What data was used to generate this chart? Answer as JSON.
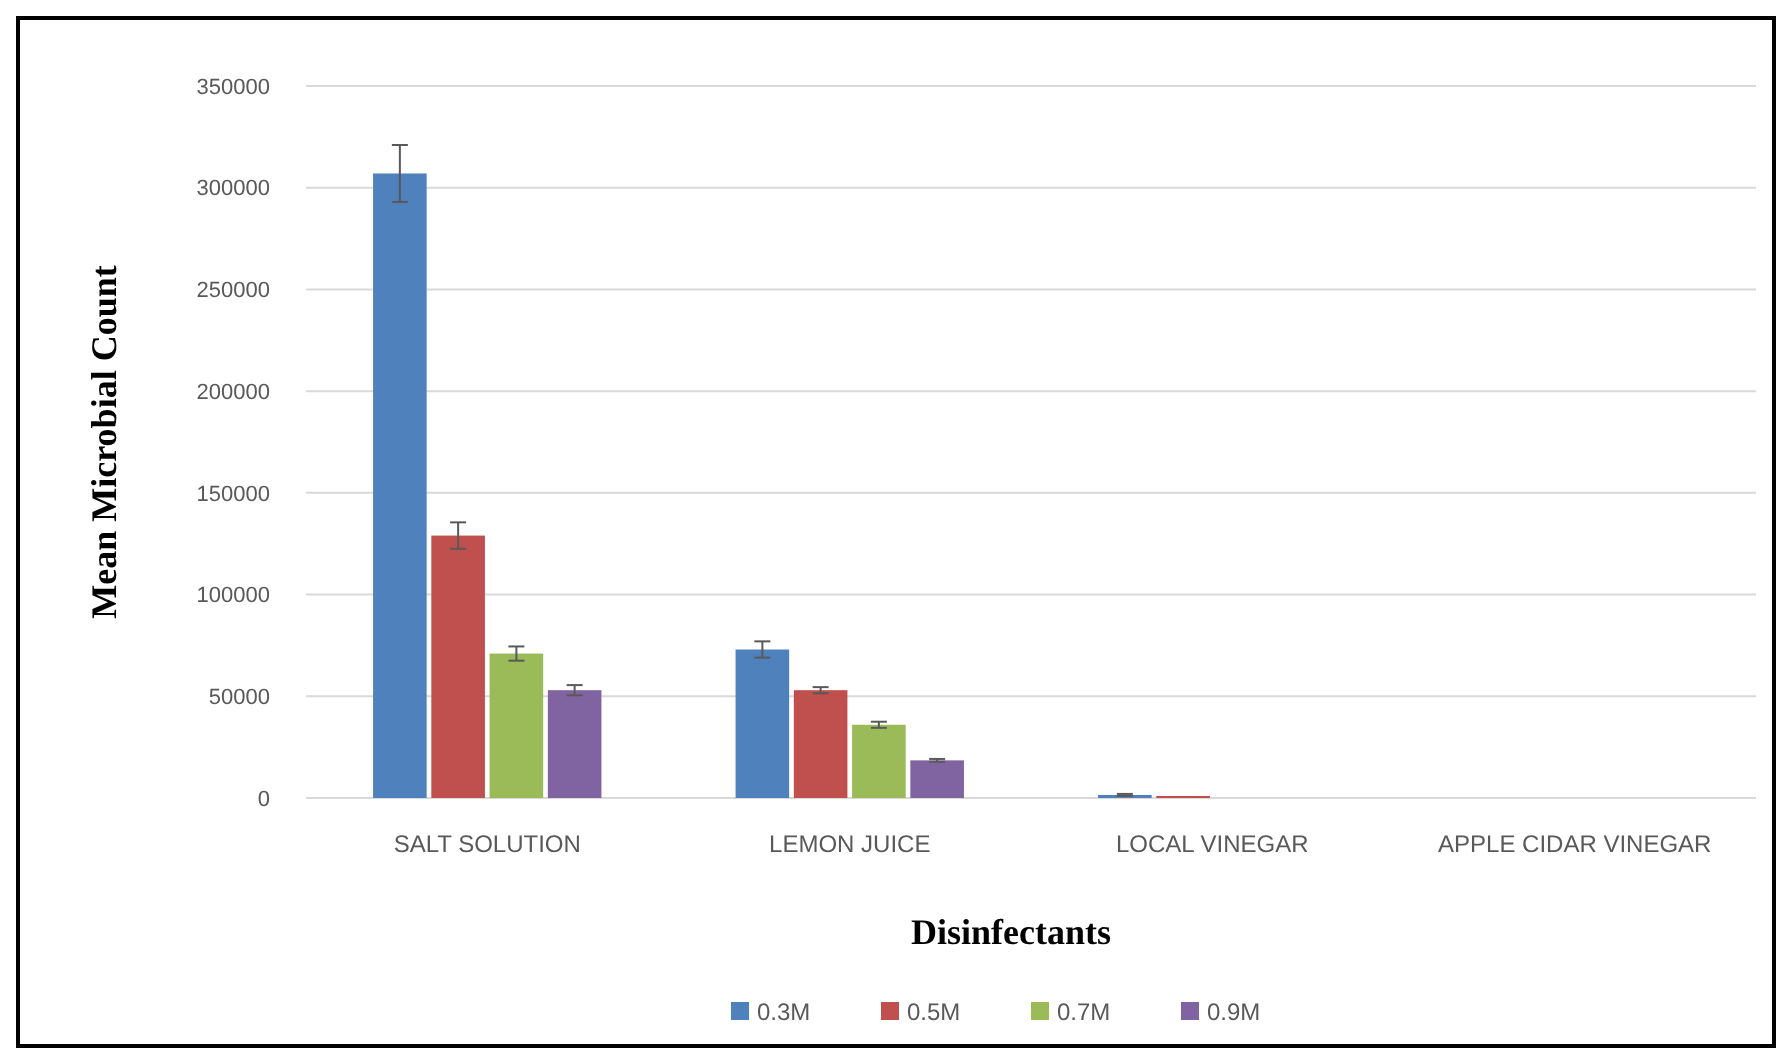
{
  "chart_data": {
    "type": "bar",
    "xlabel": "Disinfectants",
    "ylabel": "Mean Microbial Count",
    "categories": [
      "SALT SOLUTION",
      "LEMON JUICE",
      "LOCAL VINEGAR",
      "APPLE CIDAR VINEGAR"
    ],
    "series": [
      {
        "name": "0.3M",
        "color": "#4f81bd",
        "values": [
          307000,
          73000,
          1500,
          0
        ],
        "errors": [
          14000,
          4000,
          500,
          null
        ]
      },
      {
        "name": "0.5M",
        "color": "#c0504d",
        "values": [
          129000,
          53000,
          1000,
          0
        ],
        "errors": [
          6500,
          1500,
          null,
          null
        ]
      },
      {
        "name": "0.7M",
        "color": "#9bbb59",
        "values": [
          71000,
          36000,
          0,
          0
        ],
        "errors": [
          3500,
          1500,
          null,
          null
        ]
      },
      {
        "name": "0.9M",
        "color": "#8064a2",
        "values": [
          53000,
          18500,
          0,
          0
        ],
        "errors": [
          2500,
          700,
          null,
          null
        ]
      }
    ],
    "ylim": [
      0,
      350000
    ],
    "yticks": [
      0,
      50000,
      100000,
      150000,
      200000,
      250000,
      300000,
      350000
    ],
    "grid": "y",
    "legend": "bottom"
  }
}
